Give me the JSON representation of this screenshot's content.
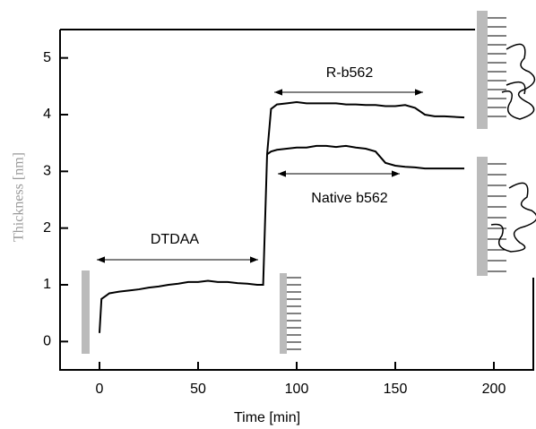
{
  "chart_data": {
    "type": "line",
    "xlabel": "Time [min]",
    "ylabel": "Thickness [nm]",
    "x": [
      0,
      1,
      3,
      5,
      10,
      15,
      20,
      25,
      30,
      35,
      40,
      45,
      50,
      55,
      60,
      65,
      70,
      75,
      80,
      83,
      85,
      87,
      90,
      95,
      100,
      105,
      110,
      115,
      120,
      125,
      130,
      135,
      140,
      145,
      150,
      155,
      160,
      165,
      170,
      175,
      180,
      185
    ],
    "series": [
      {
        "name": "R-b562",
        "color": "#000000",
        "values": [
          0.15,
          0.75,
          0.8,
          0.85,
          0.88,
          0.9,
          0.92,
          0.95,
          0.97,
          1.0,
          1.02,
          1.05,
          1.05,
          1.07,
          1.05,
          1.05,
          1.03,
          1.02,
          1.0,
          1.0,
          3.3,
          4.1,
          4.18,
          4.2,
          4.22,
          4.2,
          4.2,
          4.2,
          4.2,
          4.18,
          4.18,
          4.17,
          4.17,
          4.15,
          4.15,
          4.17,
          4.12,
          4.0,
          3.97,
          3.97,
          3.96,
          3.95
        ]
      },
      {
        "name": "Native b562",
        "color": "#000000",
        "values": [
          null,
          null,
          null,
          null,
          null,
          null,
          null,
          null,
          null,
          null,
          null,
          null,
          null,
          null,
          null,
          null,
          null,
          null,
          null,
          null,
          3.3,
          3.35,
          3.38,
          3.4,
          3.42,
          3.42,
          3.45,
          3.45,
          3.43,
          3.45,
          3.42,
          3.4,
          3.35,
          3.15,
          3.1,
          3.08,
          3.07,
          3.05,
          3.05,
          3.05,
          3.05,
          3.05
        ]
      }
    ],
    "annotations": [
      "DTDAA"
    ],
    "xlim": [
      -20,
      220
    ],
    "xticks": [
      0,
      50,
      100,
      150,
      200
    ],
    "ylim": [
      -0.5,
      5.5
    ],
    "yticks": [
      0,
      1,
      2,
      3,
      4,
      5
    ]
  }
}
